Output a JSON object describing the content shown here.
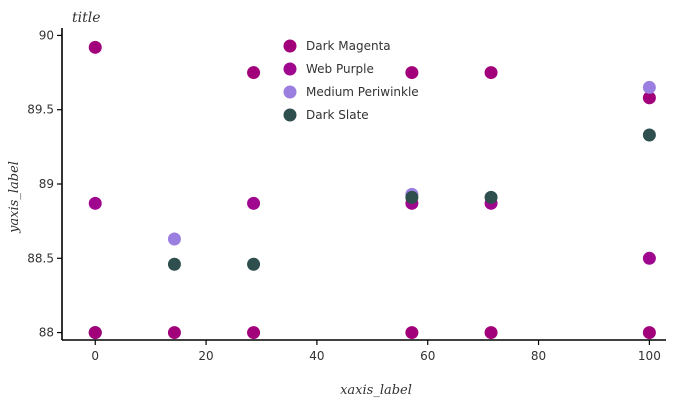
{
  "chart_data": {
    "type": "scatter",
    "title": "title",
    "xlabel": "xaxis_label",
    "ylabel": "yaxis_label",
    "xlim": [
      -6,
      103
    ],
    "ylim": [
      87.95,
      90.05
    ],
    "xticks": [
      0,
      20,
      40,
      60,
      80,
      100
    ],
    "yticks": [
      88,
      88.5,
      89,
      89.5,
      90
    ],
    "ytick_labels": [
      "88",
      "88.5",
      "89",
      "89.5",
      "90"
    ],
    "grid": false,
    "legend_position": "top-center",
    "series": [
      {
        "name": "Dark Magenta",
        "color": "#a1007a",
        "points": [
          [
            0,
            89.92
          ],
          [
            28.57,
            89.75
          ],
          [
            57.14,
            89.75
          ],
          [
            71.43,
            89.75
          ],
          [
            100,
            89.58
          ]
        ]
      },
      {
        "name": "Web Purple",
        "color": "#a0078f",
        "points": [
          [
            0,
            88.87
          ],
          [
            28.57,
            88.87
          ],
          [
            57.14,
            88.87
          ],
          [
            71.43,
            88.87
          ],
          [
            100,
            88.5
          ]
        ]
      },
      {
        "name": "Medium Periwinkle",
        "color": "#9b7fe0",
        "points": [
          [
            0,
            88.0
          ],
          [
            14.29,
            88.63
          ],
          [
            57.14,
            88.93
          ],
          [
            100,
            89.65
          ]
        ]
      },
      {
        "name": "Dark Slate",
        "color": "#2f4f4f",
        "points": [
          [
            0,
            88.0
          ],
          [
            14.29,
            88.46
          ],
          [
            28.57,
            88.46
          ],
          [
            57.14,
            88.91
          ],
          [
            71.43,
            88.91
          ],
          [
            100,
            89.33
          ]
        ]
      },
      {
        "name": "Dark Magenta",
        "color": "#a1007a",
        "points": [
          [
            0,
            88.0
          ],
          [
            14.29,
            88.0
          ],
          [
            28.57,
            88.0
          ],
          [
            57.14,
            88.0
          ],
          [
            71.43,
            88.0
          ],
          [
            100,
            88.0
          ]
        ]
      }
    ],
    "legend": [
      {
        "name": "Dark Magenta",
        "color": "#a1007a"
      },
      {
        "name": "Web Purple",
        "color": "#a0078f"
      },
      {
        "name": "Medium Periwinkle",
        "color": "#9b7fe0"
      },
      {
        "name": "Dark Slate",
        "color": "#2f4f4f"
      }
    ]
  }
}
